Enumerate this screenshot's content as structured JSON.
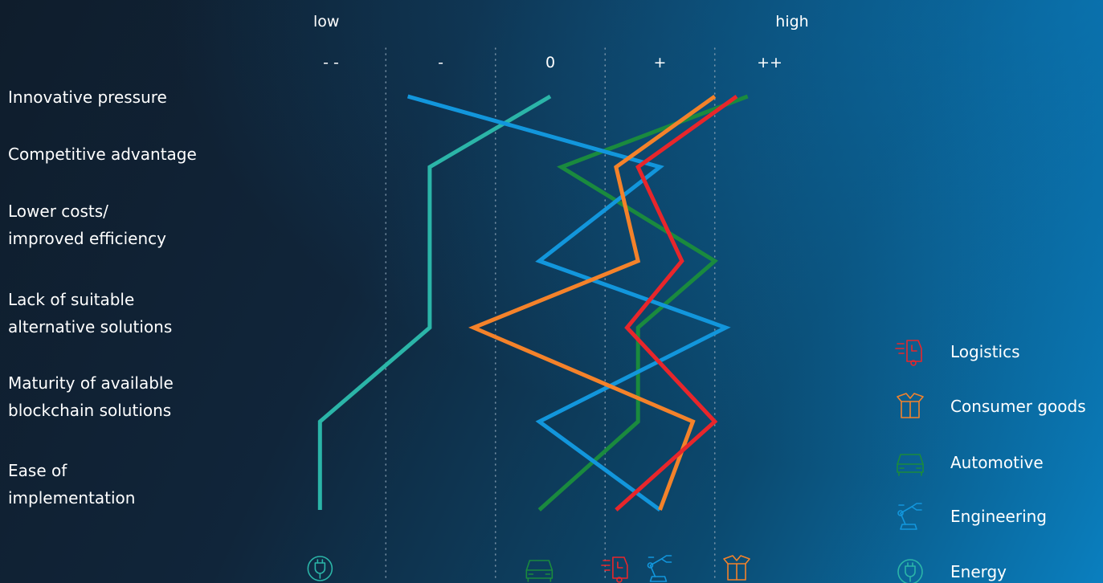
{
  "chart_data": {
    "type": "line",
    "orientation": "horizontal-profile",
    "axis_extremes": {
      "low": "low",
      "high": "high"
    },
    "scale_labels": [
      "- -",
      "-",
      "0",
      "+",
      "++"
    ],
    "xlim": [
      -2,
      2
    ],
    "categories": [
      [
        "Innovative pressure"
      ],
      [
        "Competitive advantage"
      ],
      [
        "Lower costs/",
        "improved efficiency"
      ],
      [
        "Lack of suitable",
        "alternative solutions"
      ],
      [
        "Maturity of available",
        "blockchain solutions"
      ],
      [
        "Ease of",
        "implementation"
      ]
    ],
    "series": [
      {
        "name": "Logistics",
        "color": "#e8262b",
        "icon": "truck-icon",
        "values": [
          1.7,
          0.8,
          1.2,
          0.7,
          1.5,
          0.6
        ]
      },
      {
        "name": "Consumer goods",
        "color": "#f4822a",
        "icon": "box-icon",
        "values": [
          1.5,
          0.6,
          0.8,
          -0.7,
          1.3,
          1.0
        ]
      },
      {
        "name": "Automotive",
        "color": "#1a8a3e",
        "icon": "car-icon",
        "values": [
          1.8,
          0.1,
          1.5,
          0.8,
          0.8,
          -0.1
        ]
      },
      {
        "name": "Engineering",
        "color": "#1296dc",
        "icon": "robot-arm-icon",
        "values": [
          -1.3,
          1.0,
          -0.1,
          1.6,
          -0.1,
          1.0
        ]
      },
      {
        "name": "Energy",
        "color": "#2bb5a8",
        "icon": "plug-icon",
        "values": [
          0.0,
          -1.1,
          -1.1,
          -1.1,
          -2.1,
          -2.1
        ]
      }
    ],
    "bottom_marker_order": [
      "Energy",
      "Automotive",
      "Logistics",
      "Engineering",
      "Consumer goods"
    ],
    "bottom_marker_values": [
      -2.1,
      -0.1,
      0.6,
      1.0,
      1.7
    ]
  }
}
